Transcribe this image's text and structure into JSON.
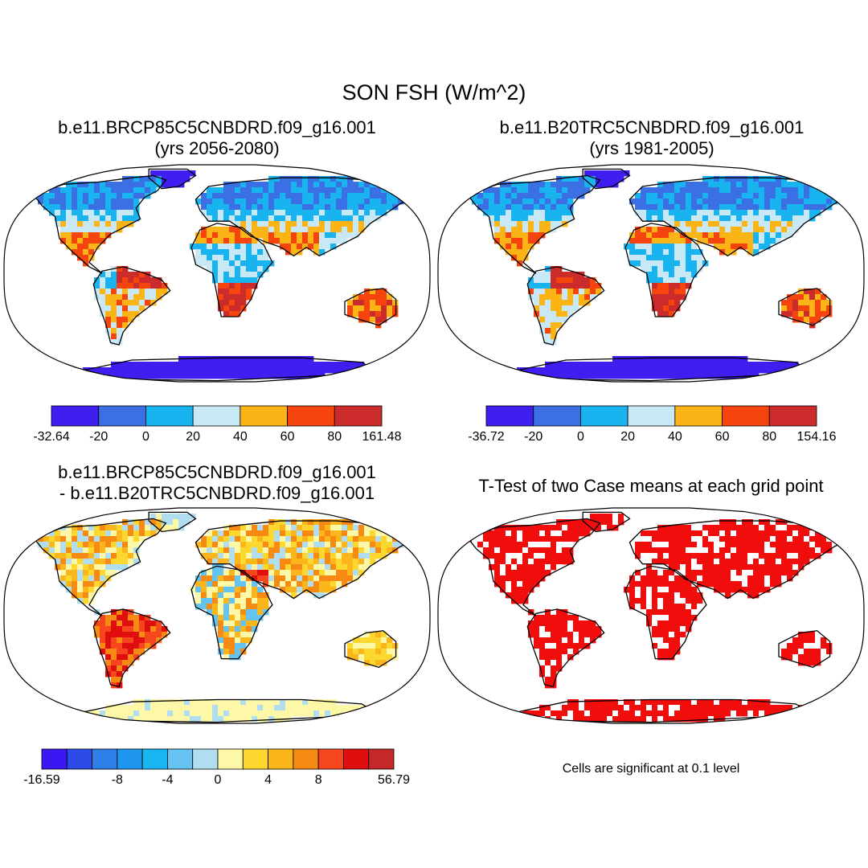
{
  "chart_data": {
    "type": "map",
    "title": "SON FSH (W/m^2)",
    "note": "Cells are significant at 0.1 level",
    "panels": [
      {
        "id": "future",
        "title_line1": "b.e11.BRCP85C5CNBDRD.f09_g16.001",
        "title_line2": "(yrs 2056-2080)",
        "colorbar": {
          "colors": [
            "#3f1ef0",
            "#3b6fe4",
            "#19b4f0",
            "#c8e8f5",
            "#fbb416",
            "#f5440e",
            "#cc2b2b"
          ],
          "labels": [
            "-32.64",
            "-20",
            "0",
            "20",
            "40",
            "60",
            "80",
            "161.48"
          ]
        }
      },
      {
        "id": "present",
        "title_line1": "b.e11.B20TRC5CNBDRD.f09_g16.001",
        "title_line2": "(yrs 1981-2005)",
        "colorbar": {
          "colors": [
            "#3f1ef0",
            "#3b6fe4",
            "#19b4f0",
            "#c8e8f5",
            "#fbb416",
            "#f5440e",
            "#cc2b2b"
          ],
          "labels": [
            "-36.72",
            "-20",
            "0",
            "20",
            "40",
            "60",
            "80",
            "154.16"
          ]
        }
      },
      {
        "id": "difference",
        "title_line1": "b.e11.BRCP85C5CNBDRD.f09_g16.001",
        "title_line2": "- b.e11.B20TRC5CNBDRD.f09_g16.001",
        "colorbar": {
          "colors": [
            "#3a17f5",
            "#2a4be8",
            "#2e7fe8",
            "#1e96ee",
            "#19b6f2",
            "#64c3f0",
            "#b0def0",
            "#fdf7a8",
            "#fcd72e",
            "#fab61a",
            "#f78a12",
            "#f5461e",
            "#e00e0e",
            "#c42828"
          ],
          "labels": [
            "-16.59",
            "-8",
            "-4",
            "0",
            "4",
            "8",
            "56.79"
          ]
        }
      },
      {
        "id": "ttest",
        "title_line1": "T-Test of two Case means at each grid point",
        "colorbar": null
      }
    ]
  }
}
